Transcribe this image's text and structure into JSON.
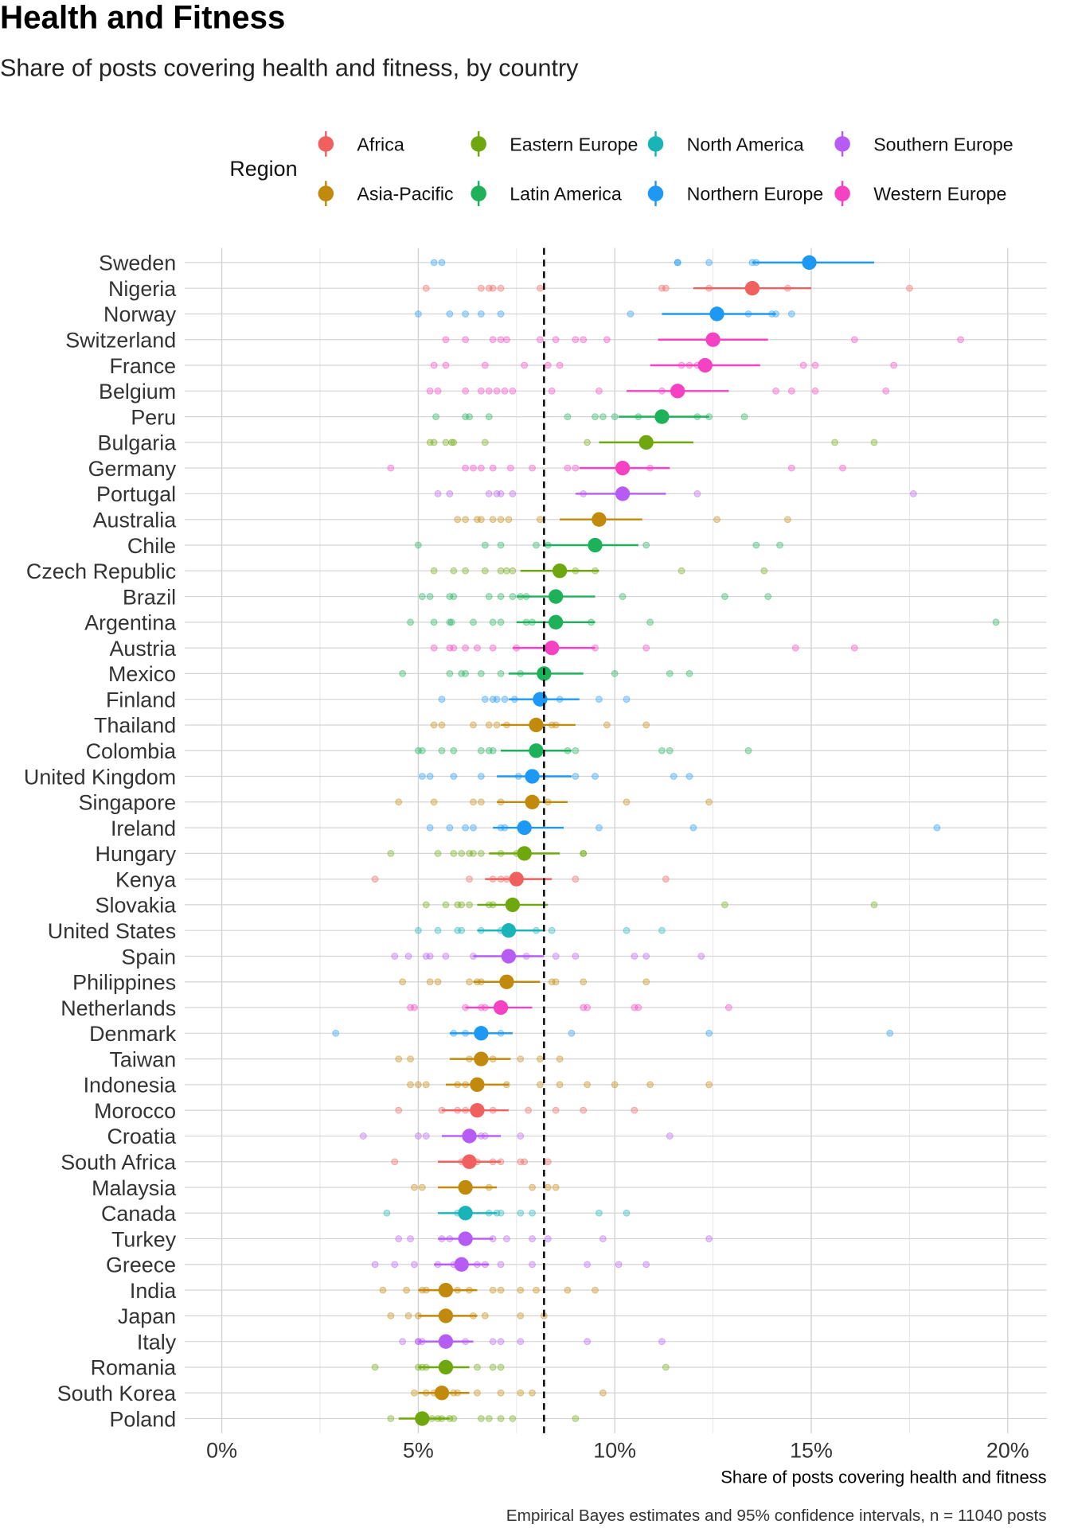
{
  "chart_data": {
    "type": "scatter",
    "title": "Health and Fitness",
    "subtitle": "Share of posts covering health and fitness, by country",
    "xlabel": "Share of posts covering health and fitness",
    "caption": "Empirical Bayes estimates and 95% confidence intervals, n = 11040 posts",
    "xlim": [
      0,
      20
    ],
    "x_ticks": [
      0,
      5,
      10,
      15,
      20
    ],
    "x_tick_labels": [
      "0%",
      "5%",
      "10%",
      "15%",
      "20%"
    ],
    "reference_line": 8.2,
    "grid": true,
    "legend": {
      "title": "Region",
      "position": "top"
    },
    "regions": [
      {
        "name": "Africa",
        "color": "#F0605E"
      },
      {
        "name": "Asia-Pacific",
        "color": "#C28A0C"
      },
      {
        "name": "Eastern Europe",
        "color": "#6EA80E"
      },
      {
        "name": "Latin America",
        "color": "#1DB25A"
      },
      {
        "name": "North America",
        "color": "#19B4B8"
      },
      {
        "name": "Northern Europe",
        "color": "#1E98F5"
      },
      {
        "name": "Southern Europe",
        "color": "#B65CF5"
      },
      {
        "name": "Western Europe",
        "color": "#F542C3"
      }
    ],
    "countries": [
      {
        "name": "Sweden",
        "region": "Northern Europe",
        "estimate": 14.95,
        "ci": [
          13.5,
          16.6
        ],
        "raw": [
          5.4,
          5.6,
          11.6,
          11.6,
          12.4,
          13.5,
          13.6
        ]
      },
      {
        "name": "Nigeria",
        "region": "Africa",
        "estimate": 13.5,
        "ci": [
          12.0,
          15.0
        ],
        "raw": [
          5.2,
          6.6,
          6.8,
          6.9,
          7.1,
          8.1,
          11.2,
          11.3,
          12.4,
          14.4,
          17.5
        ]
      },
      {
        "name": "Norway",
        "region": "Northern Europe",
        "estimate": 12.6,
        "ci": [
          11.2,
          14.1
        ],
        "raw": [
          5.0,
          5.8,
          6.2,
          6.6,
          7.1,
          10.4,
          13.4,
          14.0,
          14.1,
          14.5
        ]
      },
      {
        "name": "Switzerland",
        "region": "Western Europe",
        "estimate": 12.5,
        "ci": [
          11.1,
          13.9
        ],
        "raw": [
          5.7,
          6.2,
          6.9,
          7.1,
          7.25,
          8.1,
          8.5,
          9.0,
          9.2,
          9.8,
          16.1,
          18.8
        ]
      },
      {
        "name": "France",
        "region": "Western Europe",
        "estimate": 12.3,
        "ci": [
          10.9,
          13.7
        ],
        "raw": [
          5.4,
          5.7,
          6.7,
          7.7,
          8.3,
          8.6,
          11.7,
          11.9,
          12.1,
          14.8,
          15.1,
          17.1
        ]
      },
      {
        "name": "Belgium",
        "region": "Western Europe",
        "estimate": 11.6,
        "ci": [
          10.3,
          12.9
        ],
        "raw": [
          5.3,
          5.5,
          6.2,
          6.6,
          6.8,
          7.0,
          7.2,
          7.4,
          8.4,
          9.6,
          11.2,
          14.1,
          14.5,
          15.1,
          16.9
        ]
      },
      {
        "name": "Peru",
        "region": "Latin America",
        "estimate": 11.2,
        "ci": [
          10.1,
          12.4
        ],
        "raw": [
          5.45,
          6.2,
          6.3,
          6.8,
          8.8,
          9.5,
          9.7,
          10.0,
          10.6,
          12.1,
          12.4,
          13.3
        ]
      },
      {
        "name": "Bulgaria",
        "region": "Eastern Europe",
        "estimate": 10.8,
        "ci": [
          9.6,
          12.0
        ],
        "raw": [
          5.3,
          5.4,
          5.7,
          5.85,
          5.9,
          6.7,
          9.3,
          15.6,
          16.6
        ]
      },
      {
        "name": "Germany",
        "region": "Western Europe",
        "estimate": 10.2,
        "ci": [
          9.1,
          11.4
        ],
        "raw": [
          4.3,
          6.2,
          6.4,
          6.6,
          6.9,
          7.35,
          7.9,
          8.8,
          9.0,
          10.9,
          14.5,
          15.8
        ]
      },
      {
        "name": "Portugal",
        "region": "Southern Europe",
        "estimate": 10.2,
        "ci": [
          9.0,
          11.3
        ],
        "raw": [
          5.5,
          5.8,
          6.8,
          7.0,
          7.1,
          7.4,
          9.2,
          12.1,
          17.6
        ]
      },
      {
        "name": "Australia",
        "region": "Asia-Pacific",
        "estimate": 9.6,
        "ci": [
          8.6,
          10.7
        ],
        "raw": [
          6.0,
          6.2,
          6.5,
          6.6,
          6.9,
          7.1,
          7.3,
          8.1,
          12.6,
          14.4
        ]
      },
      {
        "name": "Chile",
        "region": "Latin America",
        "estimate": 9.5,
        "ci": [
          8.2,
          10.6
        ],
        "raw": [
          5.0,
          6.7,
          7.1,
          8.0,
          8.3,
          10.8,
          13.6,
          14.2
        ]
      },
      {
        "name": "Czech Republic",
        "region": "Eastern Europe",
        "estimate": 8.6,
        "ci": [
          7.6,
          9.6
        ],
        "raw": [
          5.4,
          5.9,
          6.2,
          6.7,
          7.1,
          7.25,
          7.4,
          9.0,
          9.5,
          11.7,
          13.8
        ]
      },
      {
        "name": "Brazil",
        "region": "Latin America",
        "estimate": 8.5,
        "ci": [
          7.5,
          9.5
        ],
        "raw": [
          5.1,
          5.3,
          5.8,
          5.9,
          6.8,
          7.1,
          7.4,
          7.6,
          7.75,
          10.2,
          12.8,
          13.9
        ]
      },
      {
        "name": "Argentina",
        "region": "Latin America",
        "estimate": 8.5,
        "ci": [
          7.5,
          9.5
        ],
        "raw": [
          4.8,
          5.4,
          5.8,
          5.85,
          6.4,
          6.9,
          7.1,
          7.75,
          7.9,
          9.4,
          10.9,
          19.7
        ]
      },
      {
        "name": "Austria",
        "region": "Western Europe",
        "estimate": 8.4,
        "ci": [
          7.4,
          9.5
        ],
        "raw": [
          5.4,
          5.8,
          5.9,
          6.2,
          6.5,
          6.9,
          7.5,
          9.5,
          10.8,
          14.6,
          16.1
        ]
      },
      {
        "name": "Mexico",
        "region": "Latin America",
        "estimate": 8.2,
        "ci": [
          7.3,
          9.2
        ],
        "raw": [
          4.6,
          5.8,
          6.1,
          6.2,
          6.6,
          7.1,
          7.6,
          10.0,
          11.4,
          11.9
        ]
      },
      {
        "name": "Finland",
        "region": "Northern Europe",
        "estimate": 8.1,
        "ci": [
          7.3,
          9.1
        ],
        "raw": [
          5.6,
          6.7,
          6.9,
          7.0,
          7.2,
          7.45,
          8.6,
          9.6,
          10.3
        ]
      },
      {
        "name": "Thailand",
        "region": "Asia-Pacific",
        "estimate": 8.0,
        "ci": [
          7.1,
          9.0
        ],
        "raw": [
          5.4,
          5.6,
          6.4,
          6.8,
          7.0,
          7.25,
          8.4,
          8.5,
          9.8,
          10.8
        ]
      },
      {
        "name": "Colombia",
        "region": "Latin America",
        "estimate": 8.0,
        "ci": [
          7.1,
          8.9
        ],
        "raw": [
          5.0,
          5.1,
          5.6,
          5.9,
          6.6,
          6.8,
          6.9,
          8.8,
          9.0,
          11.2,
          11.4,
          13.4
        ]
      },
      {
        "name": "United Kingdom",
        "region": "Northern Europe",
        "estimate": 7.9,
        "ci": [
          7.0,
          8.9
        ],
        "raw": [
          5.1,
          5.3,
          5.9,
          6.6,
          7.55,
          9.0,
          9.5,
          11.5,
          11.9
        ]
      },
      {
        "name": "Singapore",
        "region": "Asia-Pacific",
        "estimate": 7.9,
        "ci": [
          7.0,
          8.8
        ],
        "raw": [
          4.5,
          5.4,
          6.4,
          6.6,
          7.1,
          8.3,
          10.3,
          12.4
        ]
      },
      {
        "name": "Ireland",
        "region": "Northern Europe",
        "estimate": 7.7,
        "ci": [
          6.9,
          8.7
        ],
        "raw": [
          5.3,
          5.8,
          6.2,
          6.4,
          7.1,
          7.2,
          9.6,
          12.0,
          18.2
        ]
      },
      {
        "name": "Hungary",
        "region": "Eastern Europe",
        "estimate": 7.7,
        "ci": [
          6.8,
          8.6
        ],
        "raw": [
          4.3,
          5.5,
          5.9,
          6.1,
          6.3,
          6.4,
          6.6,
          7.1,
          7.5,
          9.2,
          9.2
        ]
      },
      {
        "name": "Kenya",
        "region": "Africa",
        "estimate": 7.5,
        "ci": [
          6.7,
          8.4
        ],
        "raw": [
          3.9,
          6.3,
          6.9,
          7.1,
          7.25,
          9.0,
          11.3
        ]
      },
      {
        "name": "Slovakia",
        "region": "Eastern Europe",
        "estimate": 7.4,
        "ci": [
          6.5,
          8.3
        ],
        "raw": [
          5.2,
          5.7,
          6.0,
          6.1,
          6.3,
          6.8,
          6.9,
          12.8,
          16.6
        ]
      },
      {
        "name": "United States",
        "region": "North America",
        "estimate": 7.3,
        "ci": [
          6.5,
          8.2
        ],
        "raw": [
          5.0,
          5.5,
          6.0,
          6.1,
          6.6,
          7.1,
          8.0,
          8.4,
          10.3,
          11.2
        ]
      },
      {
        "name": "Spain",
        "region": "Southern Europe",
        "estimate": 7.3,
        "ci": [
          6.4,
          8.2
        ],
        "raw": [
          4.4,
          4.75,
          5.2,
          5.3,
          5.7,
          6.4,
          7.75,
          8.5,
          9.0,
          10.5,
          10.8,
          12.2
        ]
      },
      {
        "name": "Philippines",
        "region": "Asia-Pacific",
        "estimate": 7.25,
        "ci": [
          6.4,
          8.1
        ],
        "raw": [
          4.6,
          5.3,
          5.5,
          6.3,
          6.5,
          6.6,
          8.4,
          8.5,
          9.2,
          10.8
        ]
      },
      {
        "name": "Netherlands",
        "region": "Western Europe",
        "estimate": 7.1,
        "ci": [
          6.2,
          7.9
        ],
        "raw": [
          4.8,
          4.9,
          6.2,
          6.6,
          6.7,
          9.2,
          9.3,
          10.5,
          10.6,
          12.9
        ]
      },
      {
        "name": "Denmark",
        "region": "Northern Europe",
        "estimate": 6.6,
        "ci": [
          5.8,
          7.4
        ],
        "raw": [
          2.9,
          5.9,
          6.2,
          7.1,
          8.9,
          12.4,
          17.0
        ]
      },
      {
        "name": "Taiwan",
        "region": "Asia-Pacific",
        "estimate": 6.6,
        "ci": [
          5.8,
          7.35
        ],
        "raw": [
          4.5,
          4.8,
          6.3,
          6.6,
          6.9,
          7.6,
          8.1,
          8.6
        ]
      },
      {
        "name": "Indonesia",
        "region": "Asia-Pacific",
        "estimate": 6.5,
        "ci": [
          5.7,
          7.3
        ],
        "raw": [
          4.8,
          5.0,
          5.2,
          6.0,
          6.2,
          7.25,
          8.1,
          8.6,
          9.3,
          10.0,
          10.9,
          12.4
        ]
      },
      {
        "name": "Morocco",
        "region": "Africa",
        "estimate": 6.5,
        "ci": [
          5.6,
          7.3
        ],
        "raw": [
          4.5,
          5.6,
          6.0,
          6.2,
          6.5,
          6.9,
          7.8,
          8.5,
          9.2,
          10.5
        ]
      },
      {
        "name": "Croatia",
        "region": "Southern Europe",
        "estimate": 6.3,
        "ci": [
          5.6,
          7.1
        ],
        "raw": [
          3.6,
          5.0,
          5.2,
          6.6,
          6.7,
          7.6,
          11.4
        ]
      },
      {
        "name": "South Africa",
        "region": "Africa",
        "estimate": 6.3,
        "ci": [
          5.5,
          7.1
        ],
        "raw": [
          4.4,
          6.1,
          6.5,
          6.9,
          7.1,
          7.6,
          7.7,
          8.3
        ]
      },
      {
        "name": "Malaysia",
        "region": "Asia-Pacific",
        "estimate": 6.2,
        "ci": [
          5.5,
          7.0
        ],
        "raw": [
          4.9,
          5.1,
          6.8,
          7.9,
          8.3,
          8.5
        ]
      },
      {
        "name": "Canada",
        "region": "North America",
        "estimate": 6.2,
        "ci": [
          5.5,
          7.0
        ],
        "raw": [
          4.2,
          6.0,
          6.1,
          6.8,
          7.0,
          7.1,
          7.6,
          7.9,
          9.6,
          10.3
        ]
      },
      {
        "name": "Turkey",
        "region": "Southern Europe",
        "estimate": 6.2,
        "ci": [
          5.5,
          6.9
        ],
        "raw": [
          4.5,
          4.8,
          5.6,
          5.8,
          6.9,
          7.25,
          7.9,
          8.3,
          9.7,
          12.4
        ]
      },
      {
        "name": "Greece",
        "region": "Southern Europe",
        "estimate": 6.1,
        "ci": [
          5.4,
          6.8
        ],
        "raw": [
          3.9,
          4.4,
          4.9,
          5.5,
          5.9,
          6.5,
          6.7,
          7.1,
          7.9,
          9.3,
          10.1,
          10.8
        ]
      },
      {
        "name": "India",
        "region": "Asia-Pacific",
        "estimate": 5.7,
        "ci": [
          5.0,
          6.5
        ],
        "raw": [
          4.1,
          4.7,
          5.1,
          5.2,
          6.0,
          6.3,
          6.9,
          7.1,
          7.6,
          8.0,
          8.8,
          9.5
        ]
      },
      {
        "name": "Japan",
        "region": "Asia-Pacific",
        "estimate": 5.7,
        "ci": [
          5.0,
          6.5
        ],
        "raw": [
          4.3,
          4.75,
          5.0,
          6.4,
          6.7,
          7.6,
          8.2
        ]
      },
      {
        "name": "Italy",
        "region": "Southern Europe",
        "estimate": 5.7,
        "ci": [
          5.0,
          6.4
        ],
        "raw": [
          4.6,
          5.0,
          5.0,
          5.1,
          6.2,
          6.9,
          7.1,
          7.6,
          9.3,
          11.2
        ]
      },
      {
        "name": "Romania",
        "region": "Eastern Europe",
        "estimate": 5.7,
        "ci": [
          5.0,
          6.3
        ],
        "raw": [
          3.9,
          5.0,
          5.1,
          5.2,
          5.8,
          6.5,
          6.9,
          7.1,
          11.3
        ]
      },
      {
        "name": "South Korea",
        "region": "Asia-Pacific",
        "estimate": 5.6,
        "ci": [
          5.0,
          6.3
        ],
        "raw": [
          4.9,
          5.2,
          5.4,
          5.9,
          6.0,
          6.5,
          7.1,
          7.6,
          7.9,
          9.7
        ]
      },
      {
        "name": "Poland",
        "region": "Eastern Europe",
        "estimate": 5.1,
        "ci": [
          4.5,
          5.8
        ],
        "raw": [
          4.3,
          5.35,
          5.5,
          5.6,
          5.8,
          5.9,
          6.6,
          6.8,
          7.1,
          7.4,
          9.0
        ]
      }
    ]
  }
}
